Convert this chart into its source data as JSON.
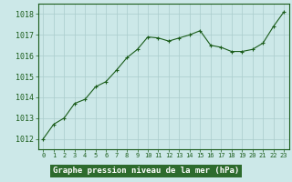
{
  "x": [
    0,
    1,
    2,
    3,
    4,
    5,
    6,
    7,
    8,
    9,
    10,
    11,
    12,
    13,
    14,
    15,
    16,
    17,
    18,
    19,
    20,
    21,
    22,
    23
  ],
  "y": [
    1012.0,
    1012.7,
    1013.0,
    1013.7,
    1013.9,
    1014.5,
    1014.75,
    1015.3,
    1015.9,
    1016.3,
    1016.9,
    1016.85,
    1016.7,
    1016.85,
    1017.0,
    1017.2,
    1016.5,
    1016.4,
    1016.2,
    1016.2,
    1016.3,
    1016.6,
    1017.4,
    1018.1
  ],
  "bg_color": "#cce8e8",
  "line_color": "#1a5c1a",
  "marker_color": "#1a5c1a",
  "grid_color": "#aacccc",
  "xlabel": "Graphe pression niveau de la mer (hPa)",
  "xlabel_bg": "#2d6b2d",
  "xlabel_color": "#ffffff",
  "tick_color": "#1a5c1a",
  "spine_color": "#1a5c1a",
  "ylim": [
    1011.5,
    1018.5
  ],
  "yticks": [
    1012,
    1013,
    1014,
    1015,
    1016,
    1017,
    1018
  ],
  "xlim": [
    -0.5,
    23.5
  ],
  "xticks": [
    0,
    1,
    2,
    3,
    4,
    5,
    6,
    7,
    8,
    9,
    10,
    11,
    12,
    13,
    14,
    15,
    16,
    17,
    18,
    19,
    20,
    21,
    22,
    23
  ]
}
